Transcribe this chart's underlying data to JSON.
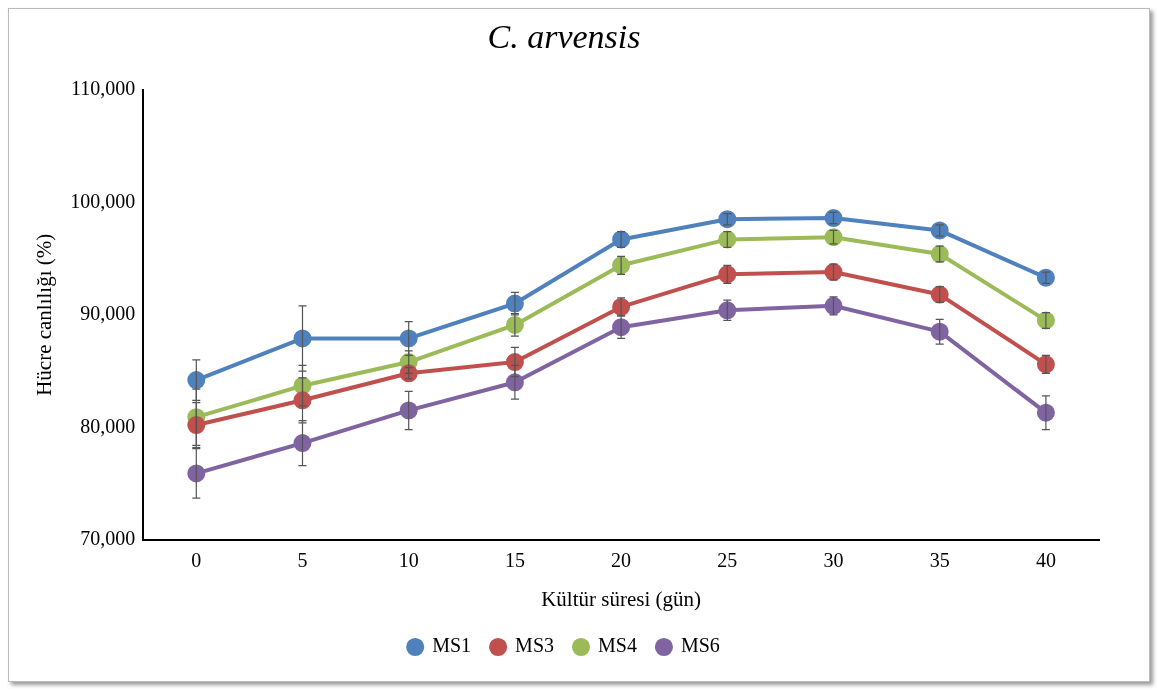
{
  "chart_data": {
    "type": "line",
    "title": "C. arvensis",
    "xlabel": "Kültür süresi (gün)",
    "ylabel": "Hücre canlılığı (%)",
    "categories": [
      "0",
      "5",
      "10",
      "15",
      "20",
      "25",
      "30",
      "35",
      "40"
    ],
    "series": [
      {
        "name": "MS1",
        "color": "#4f81bd",
        "values": [
          84200,
          87900,
          87900,
          91000,
          96700,
          98500,
          98600,
          97500,
          93300
        ],
        "errors": [
          1800,
          2900,
          1500,
          1000,
          700,
          500,
          500,
          500,
          500
        ]
      },
      {
        "name": "MS3",
        "color": "#c0504d",
        "values": [
          80200,
          82400,
          84800,
          85800,
          90700,
          93600,
          93800,
          91800,
          85600
        ],
        "errors": [
          2000,
          2000,
          500,
          1300,
          800,
          800,
          700,
          700,
          800
        ]
      },
      {
        "name": "MS4",
        "color": "#9bbb59",
        "values": [
          80900,
          83700,
          85800,
          89100,
          94400,
          96700,
          96900,
          95400,
          89500
        ],
        "errors": [
          2500,
          1800,
          1000,
          1000,
          800,
          700,
          600,
          700,
          700
        ]
      },
      {
        "name": "MS6",
        "color": "#8064a2",
        "values": [
          75900,
          78600,
          81500,
          84000,
          88900,
          90400,
          90800,
          88500,
          81300
        ],
        "errors": [
          2200,
          2000,
          1700,
          1500,
          1000,
          900,
          800,
          1100,
          1500
        ]
      }
    ],
    "ylim": [
      70000,
      110000
    ],
    "yticks": [
      {
        "value": 70000,
        "label": "70,000"
      },
      {
        "value": 80000,
        "label": "80,000"
      },
      {
        "value": 90000,
        "label": "90,000"
      },
      {
        "value": 100000,
        "label": "100,000"
      },
      {
        "value": 110000,
        "label": "110,000"
      }
    ],
    "grid": false,
    "legend": "bottom",
    "marker": "circle",
    "line_style": "solid"
  }
}
